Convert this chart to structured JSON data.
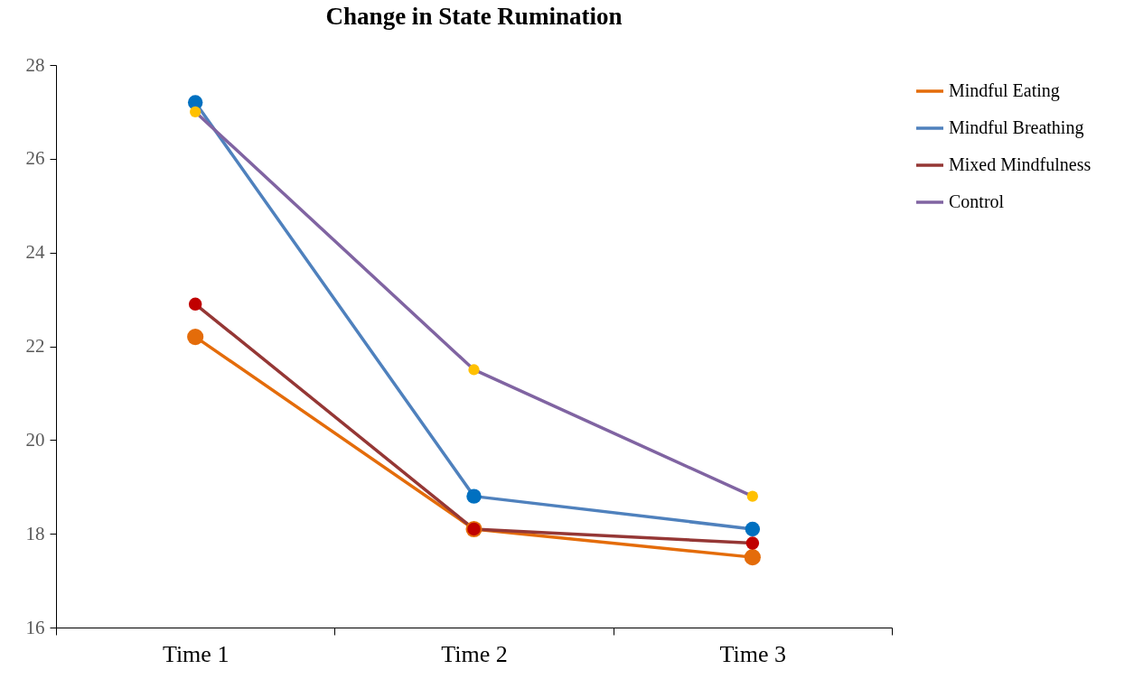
{
  "chart_data": {
    "type": "line",
    "title": "Change in State Rumination",
    "categories": [
      "Time 1",
      "Time 2",
      "Time 3"
    ],
    "series": [
      {
        "name": "Mindful Eating",
        "color": "#e46c0a",
        "colors": [
          "#e46c0a",
          "#e46c0a",
          "#e46c0a"
        ],
        "values": [
          22.2,
          18.1,
          17.5
        ]
      },
      {
        "name": "Mindful Breathing",
        "color": "#4f81bd",
        "colors": [
          "#0070c0",
          "#0070c0",
          "#0070c0"
        ],
        "values": [
          27.2,
          18.8,
          18.1
        ]
      },
      {
        "name": "Mixed Mindfulness",
        "color": "#953735",
        "colors": [
          "#c00000",
          "#c00000",
          "#c00000"
        ],
        "values": [
          22.9,
          18.1,
          17.8
        ]
      },
      {
        "name": "Control",
        "color": "#8064a2",
        "colors": [
          "#ffc000",
          "#ffc000",
          "#ffc000"
        ],
        "values": [
          27.0,
          21.5,
          18.8
        ]
      }
    ],
    "ylim": [
      16,
      28
    ],
    "yticks": [
      16,
      18,
      20,
      22,
      24,
      26,
      28
    ],
    "grid": false,
    "legend": "top right",
    "marker": "circle",
    "line_style": "solid"
  }
}
